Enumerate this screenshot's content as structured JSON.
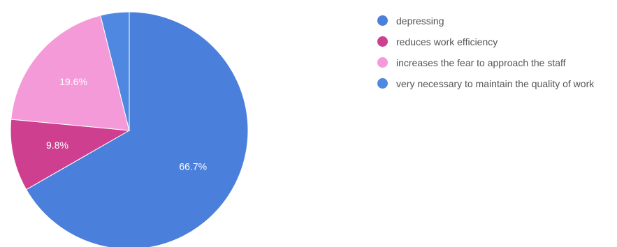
{
  "chart_data": {
    "type": "pie",
    "labels": [
      "depressing",
      "reduces work efficiency",
      "increases the fear to approach the staff",
      "very necessary to maintain the quality of work"
    ],
    "values": [
      66.7,
      9.8,
      19.6,
      3.9
    ],
    "data_labels": [
      "66.7%",
      "9.8%",
      "19.6%",
      ""
    ],
    "colors": [
      "#4a7fdb",
      "#cf3f8f",
      "#f59ad8",
      "#4f88e0"
    ],
    "legend_position": "right"
  }
}
